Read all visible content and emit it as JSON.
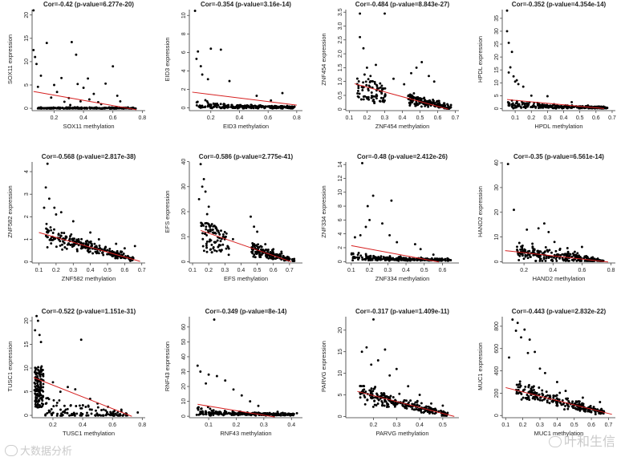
{
  "chart_data": [
    {
      "type": "scatter",
      "title": "Cor=-0.42 (p-value=6.277e-20)",
      "xlabel": "SOX11 methylation",
      "ylabel": "SOX11 expression",
      "xlim": [
        0.05,
        0.82
      ],
      "ylim": [
        -0.5,
        21.5
      ],
      "xticks": [
        "0.2",
        "0.4",
        "0.6",
        "0.8"
      ],
      "yticks": [
        "0",
        "5",
        "10",
        "15",
        "20"
      ],
      "shape": "zeros",
      "fit": {
        "x1": 0.06,
        "y1": 3.6,
        "x2": 0.76,
        "y2": -0.3
      },
      "points": [
        [
          0.06,
          21
        ],
        [
          0.06,
          12.5
        ],
        [
          0.07,
          11
        ],
        [
          0.08,
          9.5
        ],
        [
          0.11,
          7
        ],
        [
          0.15,
          14
        ],
        [
          0.2,
          5
        ],
        [
          0.22,
          3.5
        ],
        [
          0.25,
          6.5
        ],
        [
          0.3,
          2.2
        ],
        [
          0.32,
          14.2
        ],
        [
          0.35,
          11.5
        ],
        [
          0.36,
          5.2
        ],
        [
          0.38,
          1.5
        ],
        [
          0.4,
          4.4
        ],
        [
          0.43,
          6.4
        ],
        [
          0.47,
          3.1
        ],
        [
          0.5,
          1.3
        ],
        [
          0.55,
          5.3
        ],
        [
          0.6,
          9
        ],
        [
          0.63,
          2.7
        ],
        [
          0.65,
          1.5
        ],
        [
          0.27,
          1.4
        ],
        [
          0.18,
          2.3
        ],
        [
          0.09,
          4.6
        ],
        [
          0.52,
          0.9
        ],
        [
          0.44,
          1.9
        ],
        [
          0.31,
          0.7
        ]
      ]
    },
    {
      "type": "scatter",
      "title": "Cor=-0.354 (p-value=3.16e-14)",
      "xlabel": "EID3 methylation",
      "ylabel": "EID3 expression",
      "xlim": [
        0.05,
        0.84
      ],
      "ylim": [
        -0.3,
        10.8
      ],
      "xticks": [
        "0.2",
        "0.4",
        "0.6",
        "0.8"
      ],
      "yticks": [
        "0",
        "2",
        "4",
        "6",
        "8",
        "10"
      ],
      "shape": "decay",
      "fit": {
        "x1": 0.07,
        "y1": 1.7,
        "x2": 0.8,
        "y2": 0.3
      },
      "points": [
        [
          0.09,
          10.5
        ],
        [
          0.11,
          6.1
        ],
        [
          0.1,
          5.3
        ],
        [
          0.13,
          4.5
        ],
        [
          0.2,
          6.4
        ],
        [
          0.27,
          6.3
        ],
        [
          0.14,
          3.6
        ],
        [
          0.18,
          3.1
        ],
        [
          0.33,
          2.9
        ],
        [
          0.52,
          1.3
        ],
        [
          0.7,
          1.6
        ],
        [
          0.62,
          0.8
        ]
      ]
    },
    {
      "type": "scatter",
      "title": "Cor=-0.484 (p-value=8.843e-27)",
      "xlabel": "ZNF454 methylation",
      "ylabel": "ZNF454 expression",
      "xlim": [
        0.08,
        0.72
      ],
      "ylim": [
        -0.05,
        3.65
      ],
      "xticks": [
        "0.1",
        "0.2",
        "0.3",
        "0.4",
        "0.5",
        "0.6",
        "0.7"
      ],
      "yticks": [
        "0",
        "0.5",
        "1.0",
        "1.5",
        "2.0",
        "2.5",
        "3.0",
        "3.5"
      ],
      "shape": "twoclust",
      "fit": {
        "x1": 0.13,
        "y1": 0.92,
        "x2": 0.66,
        "y2": 0.0
      },
      "points": [
        [
          0.16,
          3.45
        ],
        [
          0.3,
          3.45
        ],
        [
          0.18,
          2.2
        ],
        [
          0.16,
          2.6
        ],
        [
          0.2,
          1.5
        ],
        [
          0.25,
          1.6
        ],
        [
          0.22,
          1.2
        ],
        [
          0.35,
          1.1
        ],
        [
          0.48,
          1.5
        ],
        [
          0.51,
          1.7
        ],
        [
          0.45,
          1.3
        ],
        [
          0.58,
          1.0
        ],
        [
          0.41,
          0.9
        ],
        [
          0.55,
          1.2
        ]
      ]
    },
    {
      "type": "scatter",
      "title": "Cor=-0.352 (p-value=4.354e-14)",
      "xlabel": "HPDL methylation",
      "ylabel": "HPDL expression",
      "xlim": [
        0.02,
        0.72
      ],
      "ylim": [
        -0.8,
        39
      ],
      "xticks": [
        "0.1",
        "0.2",
        "0.3",
        "0.4",
        "0.5",
        "0.6",
        "0.7"
      ],
      "yticks": [
        "0",
        "5",
        "10",
        "15",
        "20",
        "25",
        "30",
        "35"
      ],
      "shape": "decay",
      "fit": {
        "x1": 0.05,
        "y1": 3.5,
        "x2": 0.65,
        "y2": 0.0
      },
      "points": [
        [
          0.05,
          38
        ],
        [
          0.05,
          30
        ],
        [
          0.06,
          25.5
        ],
        [
          0.08,
          22
        ],
        [
          0.07,
          16
        ],
        [
          0.06,
          14
        ],
        [
          0.09,
          12.5
        ],
        [
          0.1,
          10.5
        ],
        [
          0.12,
          9.5
        ],
        [
          0.15,
          8.5
        ],
        [
          0.11,
          11
        ],
        [
          0.2,
          5
        ],
        [
          0.3,
          4.8
        ],
        [
          0.45,
          2.5
        ],
        [
          0.55,
          1.2
        ]
      ]
    },
    {
      "type": "scatter",
      "title": "Cor=-0.568 (p-value=2.817e-38)",
      "xlabel": "ZNF582 methylation",
      "ylabel": "ZNF582 expression",
      "xlim": [
        0.06,
        0.72
      ],
      "ylim": [
        -0.05,
        4.5
      ],
      "xticks": [
        "0.1",
        "0.2",
        "0.3",
        "0.4",
        "0.5",
        "0.6",
        "0.7"
      ],
      "yticks": [
        "0",
        "1",
        "2",
        "3",
        "4"
      ],
      "shape": "cloud",
      "fit": {
        "x1": 0.1,
        "y1": 1.3,
        "x2": 0.69,
        "y2": 0.02
      },
      "points": [
        [
          0.15,
          4.35
        ],
        [
          0.14,
          3.3
        ],
        [
          0.16,
          2.8
        ],
        [
          0.13,
          2.4
        ],
        [
          0.2,
          2.1
        ],
        [
          0.19,
          2.4
        ],
        [
          0.23,
          2.2
        ],
        [
          0.3,
          1.8
        ],
        [
          0.4,
          1.3
        ],
        [
          0.45,
          1.0
        ],
        [
          0.55,
          0.8
        ],
        [
          0.6,
          0.6
        ],
        [
          0.66,
          0.7
        ]
      ]
    },
    {
      "type": "scatter",
      "title": "Cor=-0.586 (p-value=2.775e-41)",
      "xlabel": "EFS methylation",
      "ylabel": "EFS expression",
      "xlim": [
        0.08,
        0.78
      ],
      "ylim": [
        -0.5,
        40.5
      ],
      "xticks": [
        "0.1",
        "0.2",
        "0.3",
        "0.4",
        "0.5",
        "0.6",
        "0.7"
      ],
      "yticks": [
        "0",
        "10",
        "20",
        "30",
        "40"
      ],
      "shape": "twoclust",
      "fit": {
        "x1": 0.15,
        "y1": 12.5,
        "x2": 0.71,
        "y2": 0.0
      },
      "points": [
        [
          0.15,
          39
        ],
        [
          0.17,
          33
        ],
        [
          0.16,
          30
        ],
        [
          0.18,
          28
        ],
        [
          0.2,
          22
        ],
        [
          0.14,
          25
        ],
        [
          0.19,
          19
        ],
        [
          0.22,
          15
        ],
        [
          0.25,
          13
        ],
        [
          0.3,
          9.5
        ],
        [
          0.35,
          9
        ],
        [
          0.46,
          18
        ],
        [
          0.48,
          14
        ],
        [
          0.5,
          12
        ],
        [
          0.55,
          7
        ],
        [
          0.6,
          5
        ],
        [
          0.65,
          4
        ]
      ]
    },
    {
      "type": "scatter",
      "title": "Cor=-0.48 (p-value=2.412e-26)",
      "xlabel": "ZNF334 methylation",
      "ylabel": "ZNF334 expression",
      "xlim": [
        0.07,
        0.69
      ],
      "ylim": [
        -0.2,
        14.6
      ],
      "xticks": [
        "0.1",
        "0.2",
        "0.3",
        "0.4",
        "0.5",
        "0.6"
      ],
      "yticks": [
        "0",
        "2",
        "4",
        "6",
        "8",
        "10",
        "12",
        "14"
      ],
      "shape": "decay",
      "fit": {
        "x1": 0.1,
        "y1": 2.3,
        "x2": 0.58,
        "y2": -0.05
      },
      "points": [
        [
          0.16,
          14.2
        ],
        [
          0.22,
          9.5
        ],
        [
          0.19,
          8
        ],
        [
          0.2,
          6
        ],
        [
          0.18,
          5
        ],
        [
          0.32,
          8.8
        ],
        [
          0.27,
          5.5
        ],
        [
          0.31,
          3.8
        ],
        [
          0.35,
          2.8
        ],
        [
          0.15,
          3.8
        ],
        [
          0.12,
          3.5
        ],
        [
          0.45,
          2.5
        ],
        [
          0.48,
          1.8
        ],
        [
          0.55,
          1.0
        ]
      ]
    },
    {
      "type": "scatter",
      "title": "Cor=-0.35 (p-value=6.561e-14)",
      "xlabel": "HAND2 methylation",
      "ylabel": "HAND2 expression",
      "xlim": [
        0.05,
        0.83
      ],
      "ylim": [
        -0.5,
        41
      ],
      "xticks": [
        "0.2",
        "0.4",
        "0.6",
        "0.8"
      ],
      "yticks": [
        "0",
        "10",
        "20",
        "30",
        "40"
      ],
      "shape": "cloud",
      "fit": {
        "x1": 0.07,
        "y1": 4.5,
        "x2": 0.78,
        "y2": -0.1
      },
      "points": [
        [
          0.09,
          39.5
        ],
        [
          0.13,
          21
        ],
        [
          0.22,
          13
        ],
        [
          0.3,
          13.5
        ],
        [
          0.34,
          15.5
        ],
        [
          0.37,
          12
        ],
        [
          0.41,
          8
        ],
        [
          0.5,
          5.5
        ],
        [
          0.6,
          6
        ],
        [
          0.55,
          4
        ]
      ]
    },
    {
      "type": "scatter",
      "title": "Cor=-0.522 (p-value=1.151e-31)",
      "xlabel": "TUSC1 methylation",
      "ylabel": "TUSC1 expression",
      "xlim": [
        0.06,
        0.82
      ],
      "ylim": [
        -0.5,
        21.2
      ],
      "xticks": [
        "0.2",
        "0.4",
        "0.6",
        "0.8"
      ],
      "yticks": [
        "0",
        "5",
        "10",
        "15",
        "20"
      ],
      "shape": "lband",
      "fit": {
        "x1": 0.07,
        "y1": 8.0,
        "x2": 0.73,
        "y2": -0.2
      },
      "points": [
        [
          0.09,
          21
        ],
        [
          0.1,
          20
        ],
        [
          0.08,
          18
        ],
        [
          0.11,
          17
        ],
        [
          0.12,
          15.5
        ],
        [
          0.39,
          16
        ],
        [
          0.3,
          6
        ],
        [
          0.35,
          5.5
        ],
        [
          0.45,
          3.5
        ],
        [
          0.5,
          2.5
        ],
        [
          0.57,
          1.8
        ],
        [
          0.66,
          1.2
        ],
        [
          0.77,
          0.6
        ],
        [
          0.2,
          7
        ],
        [
          0.25,
          5
        ]
      ]
    },
    {
      "type": "scatter",
      "title": "Cor=-0.349 (p-value=8e-14)",
      "xlabel": "RNF43 methylation",
      "ylabel": "RNF43 expression",
      "xlim": [
        0.03,
        0.44
      ],
      "ylim": [
        -1,
        68
      ],
      "xticks": [
        "0.1",
        "0.2",
        "0.3",
        "0.4"
      ],
      "yticks": [
        "0",
        "10",
        "20",
        "30",
        "40",
        "50",
        "60"
      ],
      "shape": "decay",
      "fit": {
        "x1": 0.06,
        "y1": 8.0,
        "x2": 0.34,
        "y2": -0.5
      },
      "points": [
        [
          0.12,
          65
        ],
        [
          0.06,
          34
        ],
        [
          0.07,
          30
        ],
        [
          0.1,
          28
        ],
        [
          0.13,
          27
        ],
        [
          0.16,
          24
        ],
        [
          0.09,
          22
        ],
        [
          0.19,
          18
        ],
        [
          0.22,
          14
        ],
        [
          0.25,
          10
        ],
        [
          0.28,
          7
        ],
        [
          0.35,
          3
        ],
        [
          0.42,
          2
        ]
      ]
    },
    {
      "type": "scatter",
      "title": "Cor=-0.317 (p-value=1.409e-11)",
      "xlabel": "PARVG methylation",
      "ylabel": "PARVG expression",
      "xlim": [
        0.08,
        0.57
      ],
      "ylim": [
        -0.3,
        23.5
      ],
      "xticks": [
        "0.2",
        "0.3",
        "0.4",
        "0.5"
      ],
      "yticks": [
        "0",
        "5",
        "10",
        "15",
        "20"
      ],
      "shape": "cloud",
      "fit": {
        "x1": 0.13,
        "y1": 5.8,
        "x2": 0.55,
        "y2": 0.0
      },
      "points": [
        [
          0.2,
          22.5
        ],
        [
          0.17,
          16
        ],
        [
          0.15,
          15
        ],
        [
          0.22,
          13
        ],
        [
          0.25,
          15.5
        ],
        [
          0.3,
          11
        ],
        [
          0.27,
          9.5
        ],
        [
          0.35,
          7
        ],
        [
          0.4,
          5
        ],
        [
          0.45,
          3
        ],
        [
          0.5,
          2.5
        ],
        [
          0.19,
          12
        ]
      ]
    },
    {
      "type": "scatter",
      "title": "Cor=-0.443 (p-value=2.832e-22)",
      "xlabel": "MUC1 methylation",
      "ylabel": "MUC1 expression",
      "xlim": [
        0.08,
        0.74
      ],
      "ylim": [
        -20,
        900
      ],
      "xticks": [
        "0.1",
        "0.2",
        "0.3",
        "0.4",
        "0.5",
        "0.6",
        "0.7"
      ],
      "yticks": [
        "0",
        "200",
        "400",
        "600",
        "800"
      ],
      "shape": "cloud",
      "fit": {
        "x1": 0.1,
        "y1": 250,
        "x2": 0.72,
        "y2": 10
      },
      "points": [
        [
          0.14,
          860
        ],
        [
          0.17,
          830
        ],
        [
          0.16,
          760
        ],
        [
          0.19,
          700
        ],
        [
          0.21,
          770
        ],
        [
          0.24,
          680
        ],
        [
          0.27,
          570
        ],
        [
          0.23,
          560
        ],
        [
          0.12,
          520
        ],
        [
          0.3,
          420
        ],
        [
          0.33,
          380
        ],
        [
          0.4,
          300
        ],
        [
          0.45,
          220
        ],
        [
          0.55,
          160
        ],
        [
          0.65,
          120
        ]
      ]
    }
  ],
  "watermark": {
    "left_text": "大数据分析",
    "right_text": "叶和生信"
  }
}
